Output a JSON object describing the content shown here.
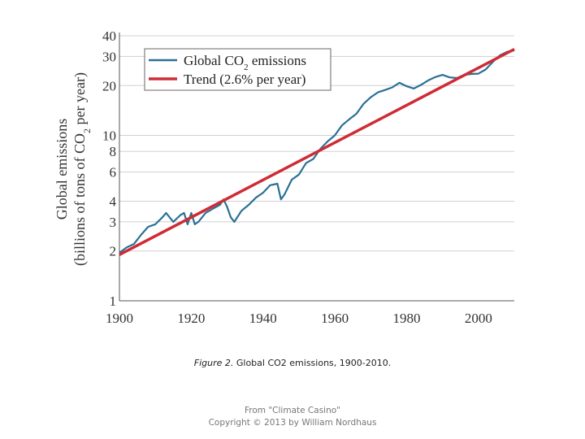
{
  "chart_data": {
    "type": "line",
    "ylabel_line1": "Global emissions",
    "ylabel_line2_pre": "(billions of tons of CO",
    "ylabel_line2_sub": "2",
    "ylabel_line2_post": " per year)",
    "y_scale": "log",
    "xlim": [
      1900,
      2010
    ],
    "ylim": [
      1,
      40
    ],
    "x_ticks": [
      1900,
      1920,
      1940,
      1960,
      1980,
      2000
    ],
    "y_ticks": [
      1,
      2,
      3,
      4,
      6,
      8,
      10,
      20,
      30,
      40
    ],
    "grid": true,
    "legend_position": "top-left",
    "series": [
      {
        "name_pre": "Global CO",
        "name_sub": "2",
        "name_post": " emissions",
        "color": "#2a7095",
        "x": [
          1900,
          1902,
          1904,
          1906,
          1908,
          1910,
          1912,
          1913,
          1915,
          1917,
          1918,
          1919,
          1920,
          1921,
          1922,
          1924,
          1926,
          1928,
          1929,
          1930,
          1931,
          1932,
          1934,
          1936,
          1938,
          1940,
          1942,
          1944,
          1945,
          1946,
          1948,
          1950,
          1952,
          1954,
          1956,
          1958,
          1960,
          1962,
          1964,
          1966,
          1968,
          1970,
          1972,
          1974,
          1976,
          1978,
          1980,
          1982,
          1984,
          1986,
          1988,
          1990,
          1992,
          1994,
          1996,
          1998,
          2000,
          2002,
          2004,
          2006,
          2008,
          2010
        ],
        "y": [
          1.95,
          2.1,
          2.2,
          2.5,
          2.8,
          2.9,
          3.2,
          3.4,
          3.0,
          3.3,
          3.4,
          2.9,
          3.4,
          2.9,
          3.0,
          3.4,
          3.6,
          3.8,
          4.1,
          3.7,
          3.2,
          3.0,
          3.5,
          3.8,
          4.2,
          4.5,
          5.0,
          5.1,
          4.1,
          4.4,
          5.4,
          5.8,
          6.8,
          7.2,
          8.3,
          9.2,
          10.0,
          11.5,
          12.5,
          13.5,
          15.5,
          17.0,
          18.2,
          18.8,
          19.5,
          20.8,
          19.8,
          19.2,
          20.2,
          21.5,
          22.5,
          23.2,
          22.4,
          22.2,
          23.2,
          23.5,
          23.6,
          25.0,
          27.8,
          30.5,
          32.0,
          32.6
        ]
      },
      {
        "name": "Trend (2.6% per year)",
        "color": "#cf2b35",
        "growth_rate": 0.026,
        "x": [
          1900,
          2010
        ],
        "y": [
          1.9,
          33.2
        ]
      }
    ]
  },
  "caption": {
    "label": "Figure 2.",
    "text": " Global CO2 emissions, 1900-2010."
  },
  "credit": {
    "line1": "From \"Climate Casino\"",
    "line2": "Copyright © 2013 by William Nordhaus"
  }
}
